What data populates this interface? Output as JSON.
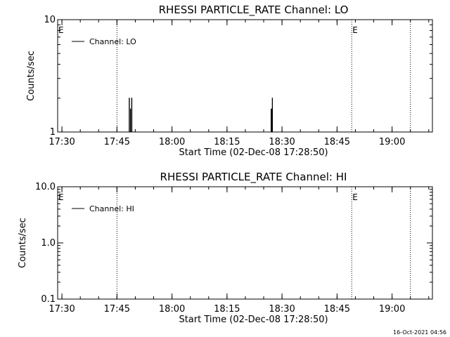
{
  "footer": {
    "timestamp": "16-Oct-2021 04:56"
  },
  "chart_data": [
    {
      "id": "lo",
      "type": "line",
      "title": "RHESSI PARTICLE_RATE Channel: LO",
      "xlabel": "Start Time (02-Dec-08 17:28:50)",
      "ylabel": "Counts/sec",
      "yscale": "log",
      "ylim": [
        1,
        10
      ],
      "xlim": [
        "17:28:50",
        "19:11:00"
      ],
      "grid": false,
      "legend_position": "top-left",
      "x_tick_labels": [
        "17:30",
        "17:45",
        "18:00",
        "18:15",
        "18:30",
        "18:45",
        "19:00"
      ],
      "x_tick_times": [
        "17:30:00",
        "17:45:00",
        "18:00:00",
        "18:15:00",
        "18:30:00",
        "18:45:00",
        "19:00:00"
      ],
      "y_tick_labels": [
        "1",
        "10"
      ],
      "y_tick_values": [
        1,
        10
      ],
      "series": [
        {
          "name": "Channel: LO",
          "points": [
            [
              "17:48:20",
              1
            ],
            [
              "17:48:20",
              2
            ],
            [
              "17:48:24",
              2
            ],
            [
              "17:48:24",
              1
            ],
            [
              "17:48:40",
              1
            ],
            [
              "17:48:40",
              1.6
            ],
            [
              "17:48:44",
              1.6
            ],
            [
              "17:48:44",
              1
            ],
            [
              "17:49:00",
              1
            ],
            [
              "17:49:00",
              2
            ],
            [
              "17:49:04",
              2
            ],
            [
              "17:49:04",
              1
            ],
            [
              "18:27:00",
              1
            ],
            [
              "18:27:00",
              1.6
            ],
            [
              "18:27:10",
              1.6
            ],
            [
              "18:27:10",
              1
            ],
            [
              "18:27:20",
              1
            ],
            [
              "18:27:20",
              2
            ],
            [
              "18:27:24",
              2
            ],
            [
              "18:27:24",
              1
            ]
          ]
        }
      ],
      "vertical_lines": [
        {
          "time": "17:45:00",
          "label": ""
        },
        {
          "time": "18:49:00",
          "label": "E"
        },
        {
          "time": "19:05:00",
          "label": ""
        }
      ],
      "edge_label": "E"
    },
    {
      "id": "hi",
      "type": "line",
      "title": "RHESSI PARTICLE_RATE Channel: HI",
      "xlabel": "Start Time (02-Dec-08 17:28:50)",
      "ylabel": "Counts/sec",
      "yscale": "log",
      "ylim": [
        0.1,
        10
      ],
      "xlim": [
        "17:28:50",
        "19:11:00"
      ],
      "grid": false,
      "legend_position": "top-left",
      "x_tick_labels": [
        "17:30",
        "17:45",
        "18:00",
        "18:15",
        "18:30",
        "18:45",
        "19:00"
      ],
      "x_tick_times": [
        "17:30:00",
        "17:45:00",
        "18:00:00",
        "18:15:00",
        "18:30:00",
        "18:45:00",
        "19:00:00"
      ],
      "y_tick_labels": [
        "0.1",
        "1.0",
        "10.0"
      ],
      "y_tick_values": [
        0.1,
        1,
        10
      ],
      "series": [
        {
          "name": "Channel: HI",
          "points": []
        }
      ],
      "vertical_lines": [
        {
          "time": "17:45:00",
          "label": ""
        },
        {
          "time": "18:49:00",
          "label": "E"
        },
        {
          "time": "19:05:00",
          "label": ""
        }
      ],
      "edge_label": "E"
    }
  ]
}
